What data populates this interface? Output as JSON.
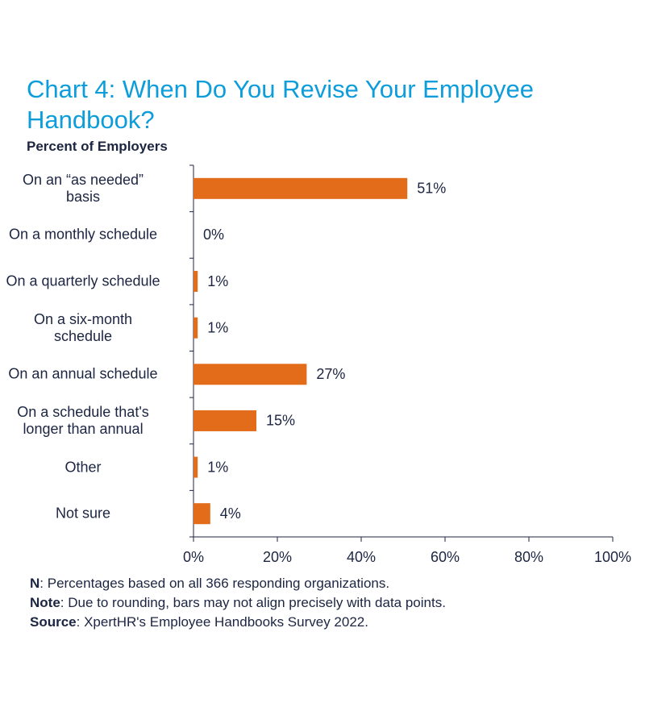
{
  "chart_data": {
    "type": "bar",
    "orientation": "horizontal",
    "title": "Chart 4: When Do You Revise Your Employee Handbook?",
    "subtitle": "Percent of Employers",
    "categories": [
      "On an “as needed”\nbasis",
      "On a monthly schedule",
      "On a quarterly schedule",
      "On a six-month\nschedule",
      "On an annual schedule",
      "On a schedule that's\nlonger than annual",
      "Other",
      "Not sure"
    ],
    "values": [
      51,
      0,
      1,
      1,
      27,
      15,
      1,
      4
    ],
    "value_labels": [
      "51%",
      "0%",
      "1%",
      "1%",
      "27%",
      "15%",
      "1%",
      "4%"
    ],
    "color": "#e36c1b",
    "xlim": [
      0,
      100
    ],
    "xticks": [
      {
        "value": 0,
        "label": "0%"
      },
      {
        "value": 20,
        "label": "20%"
      },
      {
        "value": 40,
        "label": "40%"
      },
      {
        "value": 60,
        "label": "60%"
      },
      {
        "value": 80,
        "label": "80%"
      },
      {
        "value": 100,
        "label": "100%"
      }
    ],
    "grid": false,
    "notes": [
      {
        "label": "N",
        "text": ": Percentages based on all 366 responding organizations."
      },
      {
        "label": "Note",
        "text": ": Due to rounding, bars may not align precisely with data points."
      },
      {
        "label": "Source",
        "text": ": XpertHR's Employee Handbooks Survey 2022."
      }
    ]
  }
}
